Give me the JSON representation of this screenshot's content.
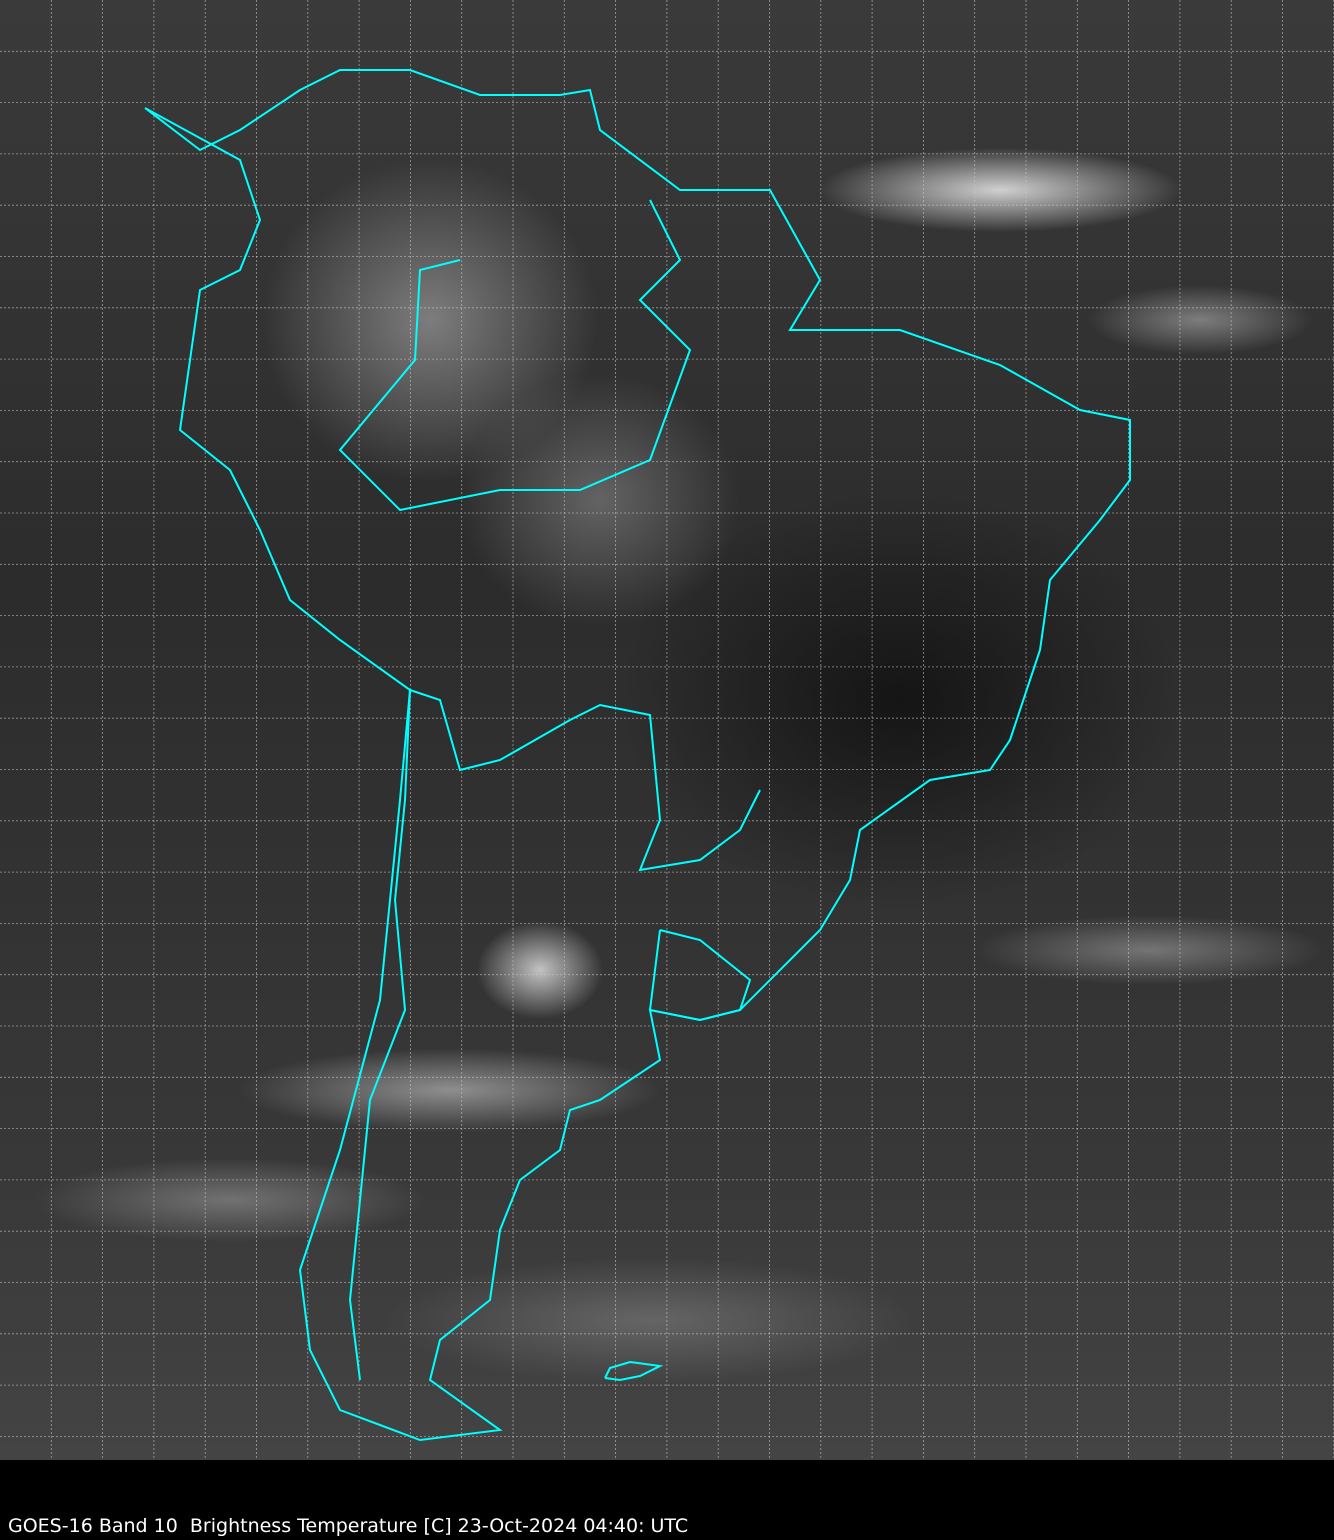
{
  "caption": "GOES-16 Band 10  Brightness Temperature [C] 23-Oct-2024 04:40: UTC",
  "colors": {
    "outline": "#00ffff",
    "grid": "#c8c8c8",
    "background": "#000000"
  }
}
